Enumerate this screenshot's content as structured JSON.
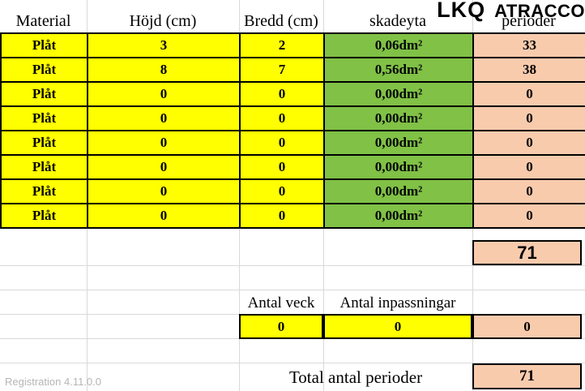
{
  "logo": {
    "lkq": "LKQ",
    "atracco": "ATRACCO"
  },
  "columns": {
    "material": "Material",
    "hojd": "Höjd (cm)",
    "bredd": "Bredd (cm)",
    "skadeyta": "skadeyta",
    "perioder": "perioder"
  },
  "table": {
    "rows": [
      {
        "material": "Plåt",
        "hojd": "3",
        "bredd": "2",
        "skadeyta": "0,06dm²",
        "perioder": "33"
      },
      {
        "material": "Plåt",
        "hojd": "8",
        "bredd": "7",
        "skadeyta": "0,56dm²",
        "perioder": "38"
      },
      {
        "material": "Plåt",
        "hojd": "0",
        "bredd": "0",
        "skadeyta": "0,00dm²",
        "perioder": "0"
      },
      {
        "material": "Plåt",
        "hojd": "0",
        "bredd": "0",
        "skadeyta": "0,00dm²",
        "perioder": "0"
      },
      {
        "material": "Plåt",
        "hojd": "0",
        "bredd": "0",
        "skadeyta": "0,00dm²",
        "perioder": "0"
      },
      {
        "material": "Plåt",
        "hojd": "0",
        "bredd": "0",
        "skadeyta": "0,00dm²",
        "perioder": "0"
      },
      {
        "material": "Plåt",
        "hojd": "0",
        "bredd": "0",
        "skadeyta": "0,00dm²",
        "perioder": "0"
      },
      {
        "material": "Plåt",
        "hojd": "0",
        "bredd": "0",
        "skadeyta": "0,00dm²",
        "perioder": "0"
      }
    ]
  },
  "extras": {
    "antal_veck_label": "Antal veck",
    "antal_veck_value": "0",
    "antal_inpassningar_label": "Antal inpassningar",
    "antal_inpassningar_value": "0",
    "extra_perioder_value": "0"
  },
  "totals": {
    "perioder_sum": "71",
    "total_label": "Total antal perioder",
    "total_value": "71"
  },
  "footer": {
    "registration": "Registration 4.11.0.0"
  },
  "colors": {
    "input_yellow": "#ffff00",
    "area_green": "#80c146",
    "period_peach": "#f8cbad",
    "border": "#000000",
    "gridline": "#d9d9d9"
  }
}
